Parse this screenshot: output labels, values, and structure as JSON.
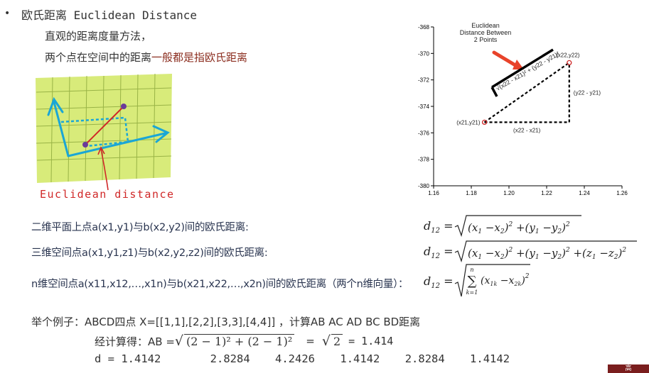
{
  "header": {
    "bullet": "•",
    "title": "欧氏距离 Euclidean Distance",
    "line1": "直观的距离度量方法，",
    "line2_prefix": "两个点在空间中的距离",
    "line2_highlight": "一般都是指欧氏距离"
  },
  "sketch": {
    "caption": "Euclidean distance"
  },
  "plot": {
    "annotation": [
      "Euclidean",
      "Distance Between",
      "2 Points"
    ],
    "point1_label": "(x21,y21)",
    "point2_label": "(x22,y22)",
    "dx_label": "(x22 - x21)",
    "dy_label": "(y22 - y21)",
    "hyp_label": "√(x22 - x21)² + (y22 - y21)²"
  },
  "chart_data": {
    "type": "scatter",
    "x_ticks": [
      "1.16",
      "1.18",
      "1.20",
      "1.22",
      "1.24",
      "1.26"
    ],
    "y_ticks": [
      "-368",
      "-370",
      "-372",
      "-374",
      "-376",
      "-378",
      "-380"
    ],
    "xlim": [
      1.16,
      1.26
    ],
    "ylim": [
      -380,
      -368
    ],
    "points": [
      {
        "label": "(x21,y21)",
        "x": 1.187,
        "y": -375.2
      },
      {
        "label": "(x22,y22)",
        "x": 1.232,
        "y": -370.7
      }
    ]
  },
  "formulas": {
    "two_d_label": "二维平面上点a(x1,y1)与b(x2,y2)间的欧氏距离:",
    "three_d_label": "三维空间点a(x1,y1,z1)与b(x2,y2,z2)间的欧氏距离:",
    "n_d_label": "n维空间点a(x11,x12,…,x1n)与b(x21,x22,…,x2n)间的欧氏距离（两个n维向量）："
  },
  "example": {
    "intro": "举个例子：ABCD四点 X=[[1,1],[2,2],[3,3],[4,4]] ，计算AB AC AD BC BD距离",
    "calc_prefix": "经计算得：AB = ",
    "calc_sqrt_content": "(2 − 1)² + (2 − 1)²",
    "calc_mid": "=",
    "calc_sqrt2": "2",
    "calc_result": "= 1.414",
    "d_label": "d = 1.4142",
    "d_values": [
      "2.8284",
      "4.2426",
      "1.4142",
      "2.8284",
      "1.4142"
    ]
  },
  "footer": {
    "tab_text": "高"
  }
}
